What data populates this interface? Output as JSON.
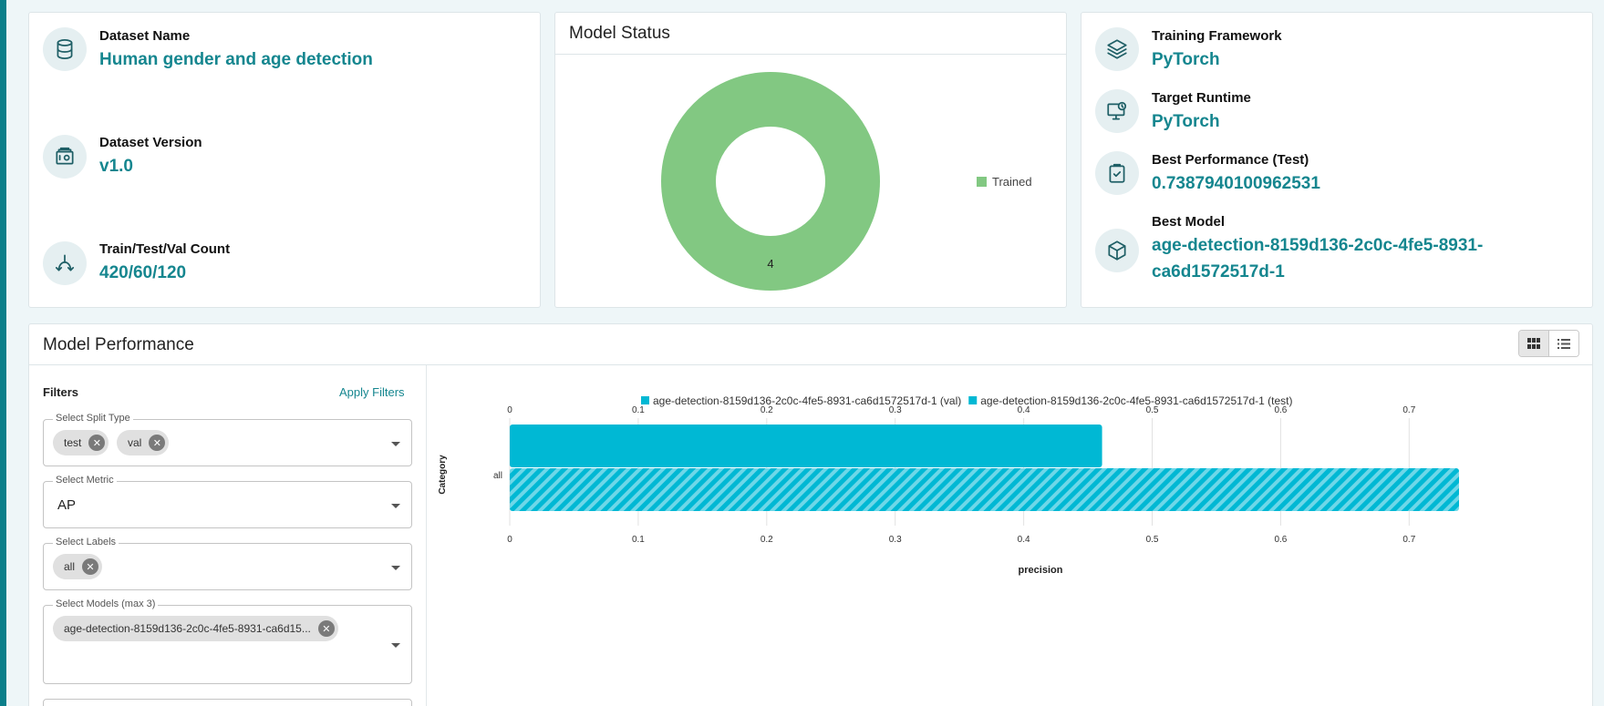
{
  "dataset": {
    "name_label": "Dataset Name",
    "name_value": "Human gender and age detection",
    "version_label": "Dataset Version",
    "version_value": "v1.0",
    "count_label": "Train/Test/Val Count",
    "count_value": "420/60/120"
  },
  "model_status": {
    "title": "Model Status",
    "legend": "Trained",
    "count": "4",
    "color": "#82c882"
  },
  "training": {
    "framework_label": "Training Framework",
    "framework_value": "PyTorch",
    "runtime_label": "Target Runtime",
    "runtime_value": "PyTorch",
    "perf_label": "Best Performance (Test)",
    "perf_value": "0.7387940100962531",
    "model_label": "Best Model",
    "model_value_line1": "age-detection-8159d136-2c0c-4fe5-8931-",
    "model_value_line2": "ca6d1572517d-1"
  },
  "performance": {
    "title": "Model Performance",
    "filters_title": "Filters",
    "apply_filters": "Apply Filters",
    "split_type": {
      "legend": "Select Split Type",
      "chips": [
        "test",
        "val"
      ]
    },
    "metric": {
      "legend": "Select Metric",
      "value": "AP"
    },
    "labels": {
      "legend": "Select Labels",
      "chips": [
        "all"
      ]
    },
    "models": {
      "legend": "Select Models (max 3)",
      "chips": [
        "age-detection-8159d136-2c0c-4fe5-8931-ca6d15..."
      ]
    }
  },
  "chart_data": {
    "type": "bar",
    "orientation": "horizontal",
    "categories": [
      "all"
    ],
    "series": [
      {
        "name": "age-detection-8159d136-2c0c-4fe5-8931-ca6d1572517d-1 (val)",
        "values": [
          0.461
        ],
        "pattern": "solid",
        "color": "#00b8d4"
      },
      {
        "name": "age-detection-8159d136-2c0c-4fe5-8931-ca6d1572517d-1 (test)",
        "values": [
          0.7388
        ],
        "pattern": "hatched",
        "color": "#00b8d4"
      }
    ],
    "xlabel": "precision",
    "ylabel": "Category",
    "xlim": [
      0,
      0.7388
    ],
    "xticks": [
      "0",
      "0.1",
      "0.2",
      "0.3",
      "0.4",
      "0.5",
      "0.6",
      "0.7"
    ],
    "legend_position": "top",
    "grid": true
  }
}
